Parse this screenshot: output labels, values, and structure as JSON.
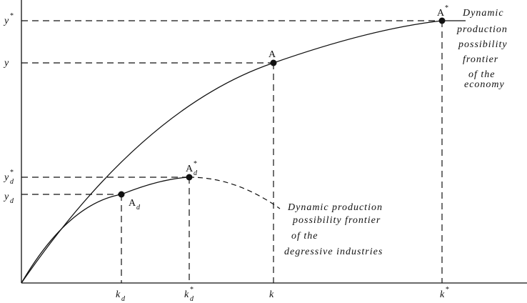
{
  "axes": {
    "y_labels": [
      {
        "base": "y",
        "sup": "*"
      },
      {
        "base": "y"
      },
      {
        "base": "y",
        "sup": "*",
        "sub": "d"
      },
      {
        "base": "y",
        "sub": "d"
      }
    ],
    "x_labels": [
      {
        "base": "k",
        "sub": "d"
      },
      {
        "base": "k",
        "sup": "*",
        "sub": "d"
      },
      {
        "base": "k"
      },
      {
        "base": "k",
        "sup": "*"
      }
    ]
  },
  "points": [
    {
      "base": "A",
      "sup": "*"
    },
    {
      "base": "A"
    },
    {
      "base": "A",
      "sup": "*",
      "sub": "d"
    },
    {
      "base": "A",
      "sub": "d"
    }
  ],
  "annotations": {
    "economy": [
      "Dynamic",
      "production",
      "possibility",
      "frontier",
      "of the",
      "economy"
    ],
    "degressive": [
      "Dynamic production",
      "possibility frontier",
      "of the",
      "degressive industries"
    ]
  }
}
